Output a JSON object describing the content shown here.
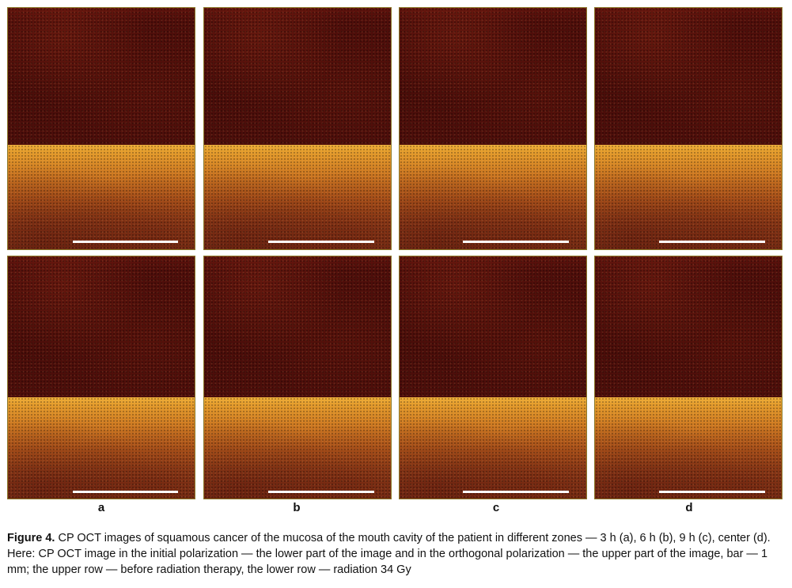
{
  "figure": {
    "panel_labels": [
      "a",
      "b",
      "c",
      "d"
    ],
    "caption_head": "Figure 4.",
    "caption_text": " CP OCT images of squamous cancer of the mucosa of the mouth cavity of the patient in different zones — 3 h (a), 6 h (b), 9 h (c), center (d). Here: CP OCT image in the initial polarization — the lower part of the image and in the orthogonal polarization — the upper part of the image, bar — 1 mm; the upper row — before radiation therapy, the lower row — radiation 34 Gy",
    "colors": {
      "orthogonal_polarization": "#4a0d09",
      "initial_polarization": "#e49b2c",
      "scale_bar": "#ffffff",
      "panel_border": "#8a7a2a"
    }
  }
}
